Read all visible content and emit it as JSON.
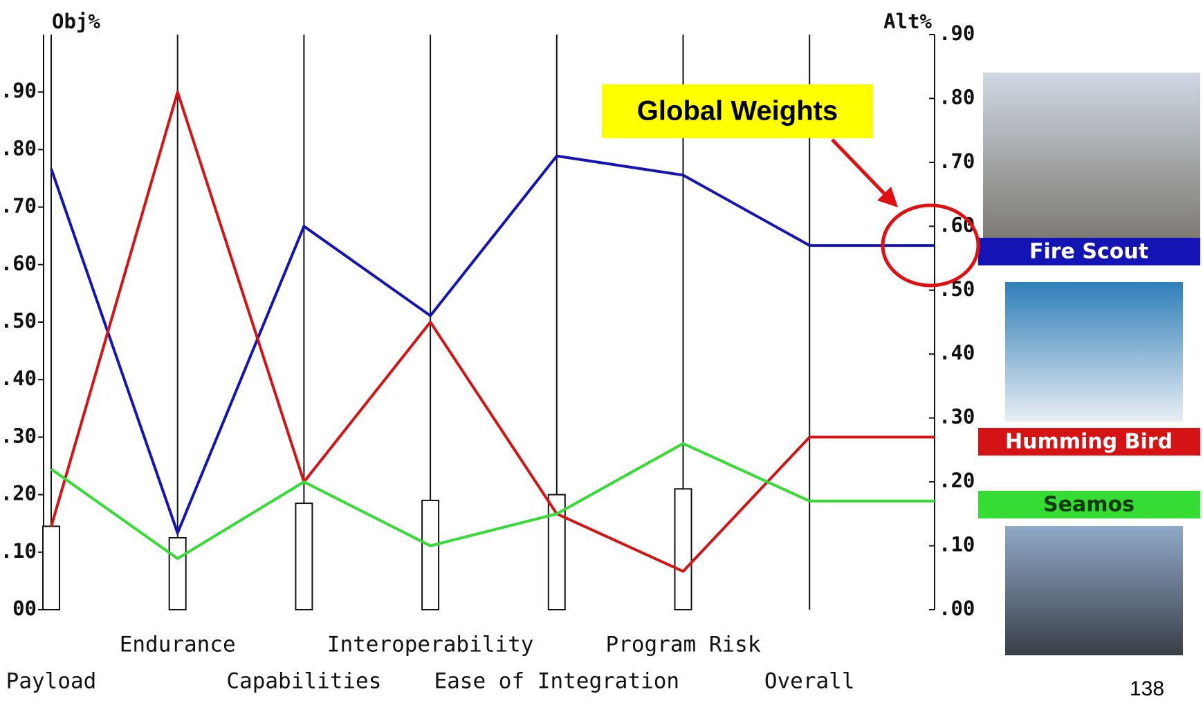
{
  "chart_data": {
    "type": "line",
    "y_label": "Obj%",
    "y2_label": "Alt%",
    "categories": [
      "Payload",
      "Endurance",
      "Capabilities",
      "Interoperability",
      "Ease of Integration",
      "Program Risk",
      "Overall"
    ],
    "ylim": [
      0,
      1.0
    ],
    "yticks": [
      {
        "value": 0,
        "label": "00"
      },
      {
        "value": 0.1,
        "label": ".10"
      },
      {
        "value": 0.2,
        "label": ".20"
      },
      {
        "value": 0.3,
        "label": ".30"
      },
      {
        "value": 0.4,
        "label": ".40"
      },
      {
        "value": 0.5,
        "label": ".50"
      },
      {
        "value": 0.6,
        "label": ".60"
      },
      {
        "value": 0.7,
        "label": ".70"
      },
      {
        "value": 0.8,
        "label": ".80"
      },
      {
        "value": 0.9,
        "label": ".90"
      }
    ],
    "y2lim": [
      0,
      0.9
    ],
    "y2ticks": [
      {
        "value": 0,
        "label": ".00"
      },
      {
        "value": 0.1,
        "label": ".10"
      },
      {
        "value": 0.2,
        "label": ".20"
      },
      {
        "value": 0.3,
        "label": ".30"
      },
      {
        "value": 0.4,
        "label": ".40"
      },
      {
        "value": 0.5,
        "label": ".50"
      },
      {
        "value": 0.6,
        "label": ".60"
      },
      {
        "value": 0.7,
        "label": ".70"
      },
      {
        "value": 0.8,
        "label": ".80"
      },
      {
        "value": 0.9,
        "label": ".90"
      }
    ],
    "bars": {
      "values": [
        0.145,
        0.125,
        0.185,
        0.19,
        0.2,
        0.21,
        null
      ],
      "color": "#ffffff"
    },
    "series": [
      {
        "name": "Fire Scout",
        "color": "#1414b4",
        "axis": "y2",
        "values": [
          0.69,
          0.12,
          0.6,
          0.46,
          0.71,
          0.68,
          0.57
        ]
      },
      {
        "name": "Humming Bird",
        "color": "#d41414",
        "axis": "y2",
        "values": [
          0.13,
          0.81,
          0.2,
          0.45,
          0.15,
          0.06,
          0.27
        ]
      },
      {
        "name": "Seamos",
        "color": "#34dc34",
        "axis": "y2",
        "values": [
          0.22,
          0.08,
          0.2,
          0.1,
          0.15,
          0.26,
          0.17
        ]
      }
    ],
    "annotation": "Global Weights"
  },
  "page_number": "138"
}
